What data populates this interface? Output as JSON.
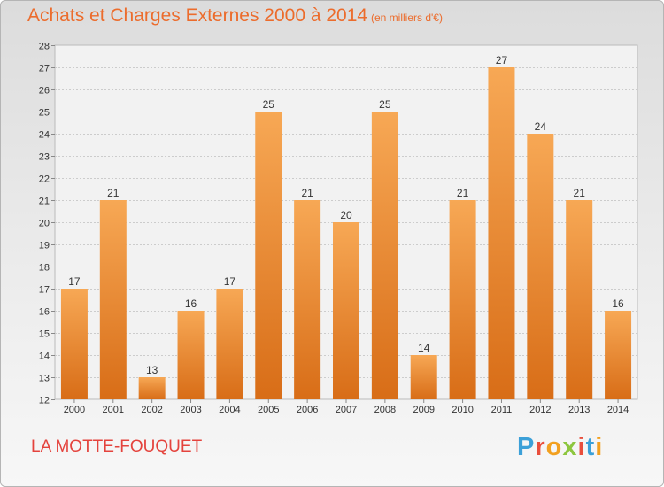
{
  "title": "Achats et Charges Externes 2000 à 2014",
  "subtitle": "(en milliers d'€)",
  "location_label": "LA MOTTE-FOUQUET",
  "brand": {
    "text": "Proxiti",
    "letter_colors": [
      "#3ca0d8",
      "#e94e3c",
      "#f2a01f",
      "#8dc63f",
      "#e94e3c",
      "#3ca0d8",
      "#f2a01f"
    ]
  },
  "colors": {
    "title": "#ec6c2c",
    "location": "#e4433d",
    "bar_light": "#f7a855",
    "bar_dark": "#d86d17",
    "grid": "#cccccc",
    "axis_text": "#333333"
  },
  "chart_data": {
    "type": "bar",
    "categories": [
      "2000",
      "2001",
      "2002",
      "2003",
      "2004",
      "2005",
      "2006",
      "2007",
      "2008",
      "2009",
      "2010",
      "2011",
      "2012",
      "2013",
      "2014"
    ],
    "values": [
      17,
      21,
      13,
      16,
      17,
      25,
      21,
      20,
      25,
      14,
      21,
      27,
      24,
      21,
      16
    ],
    "data_labels": [
      "17",
      "21",
      "13",
      "16",
      "17",
      "25",
      "21",
      "20",
      "25",
      "14",
      "21",
      "27",
      "24",
      "21",
      "16"
    ],
    "yticks": [
      "12",
      "13",
      "14",
      "15",
      "16",
      "17",
      "18",
      "19",
      "20",
      "21",
      "22",
      "23",
      "24",
      "25",
      "26",
      "27",
      "28"
    ],
    "ylim": [
      12,
      28
    ],
    "grid": true,
    "xlabel": "",
    "ylabel": ""
  }
}
